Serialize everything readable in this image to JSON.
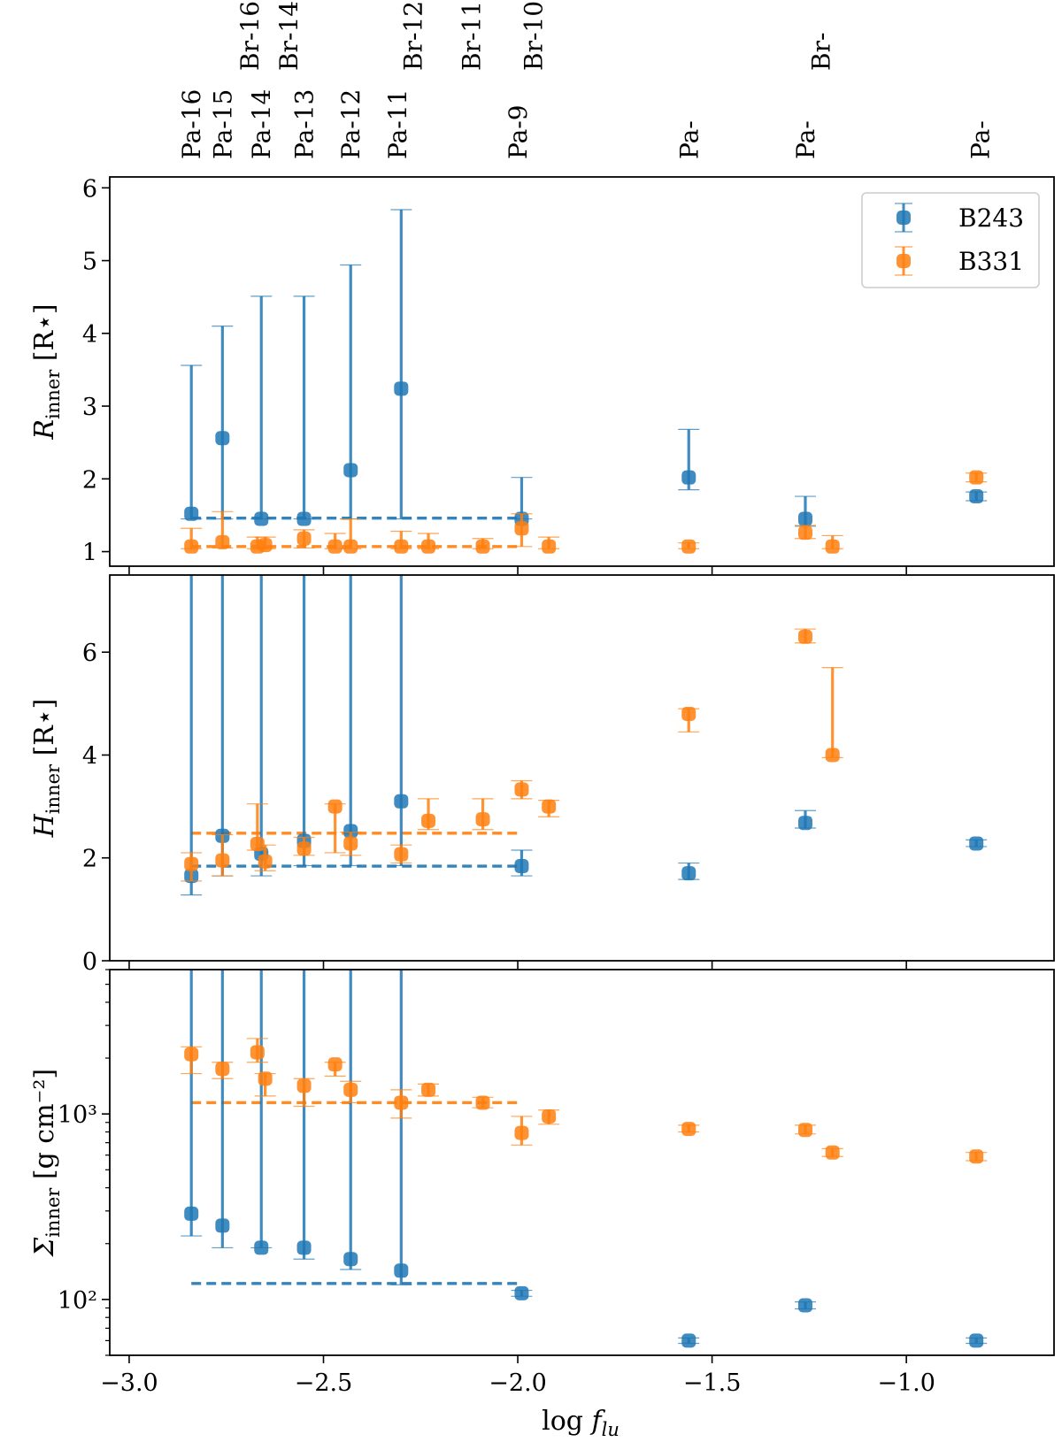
{
  "chart_data": {
    "type": "errorbar-scatter",
    "x": {
      "label_base": "log ",
      "label_var": "f",
      "label_sub": "lu",
      "range": [
        -3.05,
        -0.62
      ],
      "ticks": [
        -3.0,
        -2.5,
        -2.0,
        -1.5,
        -1.0
      ],
      "tick_labels": [
        "−3.0",
        "−2.5",
        "−2.0",
        "−1.5",
        "−1.0"
      ]
    },
    "line_labels": {
      "brackett": [
        {
          "label": "Br-16",
          "x": -2.69
        },
        {
          "label": "Br-14",
          "x": -2.59
        },
        {
          "label": "Br-12",
          "x": -2.27
        },
        {
          "label": "Br-11",
          "x": -2.12
        },
        {
          "label": "Br-10",
          "x": -1.96
        },
        {
          "label": "Br-",
          "x": -1.22
        }
      ],
      "paschen": [
        {
          "label": "Pa-16",
          "x": -2.84
        },
        {
          "label": "Pa-15",
          "x": -2.76
        },
        {
          "label": "Pa-14",
          "x": -2.66
        },
        {
          "label": "Pa-13",
          "x": -2.55
        },
        {
          "label": "Pa-12",
          "x": -2.43
        },
        {
          "label": "Pa-11",
          "x": -2.31
        },
        {
          "label": "Pa-9",
          "x": -2.0
        },
        {
          "label": "Pa-",
          "x": -1.56
        },
        {
          "label": "Pa-",
          "x": -1.26
        },
        {
          "label": "Pa-",
          "x": -0.81
        }
      ]
    },
    "legend": {
      "location": "upper right of top panel",
      "entries": [
        {
          "name": "B243",
          "color": "#1f77b4"
        },
        {
          "name": "B331",
          "color": "#ff7f0e"
        }
      ]
    },
    "panels": [
      {
        "id": "r-inner",
        "ylabel_sym": "R",
        "ylabel_sub": "inner",
        "ylabel_unit": "[R⋆]",
        "yscale": "linear",
        "ylim": [
          0.8,
          6.15
        ],
        "yticks": [
          1,
          2,
          3,
          4,
          5,
          6
        ],
        "ytick_labels": [
          "1",
          "2",
          "3",
          "4",
          "5",
          "6"
        ],
        "series": [
          {
            "name": "B243",
            "color": "#1f77b4",
            "points": [
              {
                "x": -2.84,
                "y": 1.52,
                "lo": 1.45,
                "hi": 3.56
              },
              {
                "x": -2.76,
                "y": 2.56,
                "lo": 1.45,
                "hi": 4.1
              },
              {
                "x": -2.66,
                "y": 1.45,
                "lo": 1.45,
                "hi": 4.51
              },
              {
                "x": -2.55,
                "y": 1.45,
                "lo": 1.45,
                "hi": 4.51
              },
              {
                "x": -2.43,
                "y": 2.12,
                "lo": 1.45,
                "hi": 4.94
              },
              {
                "x": -2.3,
                "y": 3.24,
                "lo": 1.45,
                "hi": 5.7
              },
              {
                "x": -1.99,
                "y": 1.45,
                "lo": 1.45,
                "hi": 2.02
              },
              {
                "x": -1.56,
                "y": 2.02,
                "lo": 1.85,
                "hi": 2.68
              },
              {
                "x": -1.26,
                "y": 1.45,
                "lo": 1.35,
                "hi": 1.76
              },
              {
                "x": -0.82,
                "y": 1.76,
                "lo": 1.7,
                "hi": 1.82
              }
            ],
            "mean": {
              "y": 1.46,
              "x0": -2.84,
              "x1": -1.99
            }
          },
          {
            "name": "B331",
            "color": "#ff7f0e",
            "points": [
              {
                "x": -2.84,
                "y": 1.07,
                "lo": 1.04,
                "hi": 1.32
              },
              {
                "x": -2.76,
                "y": 1.13,
                "lo": 1.05,
                "hi": 1.55
              },
              {
                "x": -2.67,
                "y": 1.07,
                "lo": 1.04,
                "hi": 1.2
              },
              {
                "x": -2.65,
                "y": 1.09,
                "lo": 1.04,
                "hi": 1.2
              },
              {
                "x": -2.55,
                "y": 1.18,
                "lo": 1.05,
                "hi": 1.3
              },
              {
                "x": -2.47,
                "y": 1.07,
                "lo": 1.04,
                "hi": 1.25
              },
              {
                "x": -2.43,
                "y": 1.07,
                "lo": 1.04,
                "hi": 1.45
              },
              {
                "x": -2.3,
                "y": 1.07,
                "lo": 1.04,
                "hi": 1.28
              },
              {
                "x": -2.23,
                "y": 1.07,
                "lo": 1.04,
                "hi": 1.25
              },
              {
                "x": -2.09,
                "y": 1.07,
                "lo": 1.04,
                "hi": 1.18
              },
              {
                "x": -1.99,
                "y": 1.32,
                "lo": 1.07,
                "hi": 1.52
              },
              {
                "x": -1.92,
                "y": 1.07,
                "lo": 1.04,
                "hi": 1.2
              },
              {
                "x": -1.56,
                "y": 1.07,
                "lo": 1.04,
                "hi": 1.12
              },
              {
                "x": -1.26,
                "y": 1.26,
                "lo": 1.18,
                "hi": 1.36
              },
              {
                "x": -1.19,
                "y": 1.07,
                "lo": 1.04,
                "hi": 1.22
              },
              {
                "x": -0.82,
                "y": 2.02,
                "lo": 1.96,
                "hi": 2.08
              }
            ],
            "mean": {
              "y": 1.07,
              "x0": -2.84,
              "x1": -1.99
            }
          }
        ]
      },
      {
        "id": "h-inner",
        "ylabel_sym": "H",
        "ylabel_sub": "inner",
        "ylabel_unit": "[R⋆]",
        "yscale": "linear",
        "ylim": [
          0,
          7.5
        ],
        "yticks": [
          0,
          2,
          4,
          6
        ],
        "ytick_labels": [
          "0",
          "2",
          "4",
          "6"
        ],
        "series": [
          {
            "name": "B243",
            "color": "#1f77b4",
            "points": [
              {
                "x": -2.84,
                "y": 1.65,
                "lo": 1.28,
                "hi": 7.5
              },
              {
                "x": -2.76,
                "y": 2.43,
                "lo": 1.65,
                "hi": 7.5
              },
              {
                "x": -2.66,
                "y": 2.08,
                "lo": 1.65,
                "hi": 7.5
              },
              {
                "x": -2.55,
                "y": 2.33,
                "lo": 1.85,
                "hi": 7.5
              },
              {
                "x": -2.43,
                "y": 2.52,
                "lo": 1.85,
                "hi": 7.5
              },
              {
                "x": -2.3,
                "y": 3.1,
                "lo": 1.85,
                "hi": 7.5
              },
              {
                "x": -1.99,
                "y": 1.84,
                "lo": 1.65,
                "hi": 2.15
              },
              {
                "x": -1.56,
                "y": 1.7,
                "lo": 1.58,
                "hi": 1.9
              },
              {
                "x": -1.26,
                "y": 2.68,
                "lo": 2.58,
                "hi": 2.92
              },
              {
                "x": -0.82,
                "y": 2.28,
                "lo": 2.22,
                "hi": 2.35
              }
            ],
            "mean": {
              "y": 1.84,
              "x0": -2.84,
              "x1": -1.99
            }
          },
          {
            "name": "B331",
            "color": "#ff7f0e",
            "points": [
              {
                "x": -2.84,
                "y": 1.88,
                "lo": 1.55,
                "hi": 2.1
              },
              {
                "x": -2.76,
                "y": 1.95,
                "lo": 1.65,
                "hi": 2.45
              },
              {
                "x": -2.67,
                "y": 2.27,
                "lo": 2.15,
                "hi": 3.05
              },
              {
                "x": -2.65,
                "y": 1.93,
                "lo": 1.75,
                "hi": 2.25
              },
              {
                "x": -2.55,
                "y": 2.18,
                "lo": 2.05,
                "hi": 2.4
              },
              {
                "x": -2.47,
                "y": 3.0,
                "lo": 2.1,
                "hi": 3.05
              },
              {
                "x": -2.43,
                "y": 2.28,
                "lo": 2.05,
                "hi": 2.5
              },
              {
                "x": -2.3,
                "y": 2.07,
                "lo": 1.9,
                "hi": 2.25
              },
              {
                "x": -2.23,
                "y": 2.72,
                "lo": 2.55,
                "hi": 3.15
              },
              {
                "x": -2.09,
                "y": 2.75,
                "lo": 2.55,
                "hi": 3.15
              },
              {
                "x": -1.99,
                "y": 3.33,
                "lo": 3.15,
                "hi": 3.5
              },
              {
                "x": -1.92,
                "y": 3.0,
                "lo": 2.8,
                "hi": 3.12
              },
              {
                "x": -1.56,
                "y": 4.8,
                "lo": 4.45,
                "hi": 4.9
              },
              {
                "x": -1.26,
                "y": 6.3,
                "lo": 6.18,
                "hi": 6.45
              },
              {
                "x": -1.19,
                "y": 4.0,
                "lo": 3.95,
                "hi": 5.7
              }
            ],
            "mean": {
              "y": 2.48,
              "x0": -2.84,
              "x1": -1.99
            }
          }
        ]
      },
      {
        "id": "sigma-inner",
        "ylabel_sym": "Σ",
        "ylabel_sub": "inner",
        "ylabel_unit": "[g cm⁻²]",
        "yscale": "log",
        "ylim": [
          50,
          6000
        ],
        "yticks": [
          100,
          1000
        ],
        "ytick_labels": [
          "10²",
          "10³"
        ],
        "series": [
          {
            "name": "B243",
            "color": "#1f77b4",
            "points": [
              {
                "x": -2.84,
                "y": 290,
                "lo": 220,
                "hi": 6000
              },
              {
                "x": -2.76,
                "y": 250,
                "lo": 190,
                "hi": 6000
              },
              {
                "x": -2.66,
                "y": 190,
                "lo": 190,
                "hi": 6000
              },
              {
                "x": -2.55,
                "y": 190,
                "lo": 165,
                "hi": 6000
              },
              {
                "x": -2.43,
                "y": 165,
                "lo": 145,
                "hi": 6000
              },
              {
                "x": -2.3,
                "y": 143,
                "lo": 120,
                "hi": 6000
              },
              {
                "x": -1.99,
                "y": 108,
                "lo": 104,
                "hi": 112
              },
              {
                "x": -1.56,
                "y": 60,
                "lo": 58,
                "hi": 62
              },
              {
                "x": -1.26,
                "y": 93,
                "lo": 89,
                "hi": 97
              },
              {
                "x": -0.82,
                "y": 60,
                "lo": 58,
                "hi": 62
              }
            ],
            "mean": {
              "y": 122,
              "x0": -2.84,
              "x1": -1.99
            }
          },
          {
            "name": "B331",
            "color": "#ff7f0e",
            "points": [
              {
                "x": -2.84,
                "y": 2100,
                "lo": 1650,
                "hi": 2300
              },
              {
                "x": -2.76,
                "y": 1750,
                "lo": 1550,
                "hi": 1900
              },
              {
                "x": -2.67,
                "y": 2150,
                "lo": 1900,
                "hi": 2550
              },
              {
                "x": -2.65,
                "y": 1550,
                "lo": 1250,
                "hi": 1650
              },
              {
                "x": -2.55,
                "y": 1420,
                "lo": 1100,
                "hi": 1550
              },
              {
                "x": -2.47,
                "y": 1850,
                "lo": 1600,
                "hi": 1900
              },
              {
                "x": -2.43,
                "y": 1350,
                "lo": 1150,
                "hi": 1500
              },
              {
                "x": -2.3,
                "y": 1150,
                "lo": 950,
                "hi": 1350
              },
              {
                "x": -2.23,
                "y": 1350,
                "lo": 1250,
                "hi": 1450
              },
              {
                "x": -2.09,
                "y": 1150,
                "lo": 1080,
                "hi": 1230
              },
              {
                "x": -1.99,
                "y": 790,
                "lo": 680,
                "hi": 970
              },
              {
                "x": -1.92,
                "y": 970,
                "lo": 880,
                "hi": 1050
              },
              {
                "x": -1.56,
                "y": 830,
                "lo": 800,
                "hi": 870
              },
              {
                "x": -1.26,
                "y": 820,
                "lo": 780,
                "hi": 870
              },
              {
                "x": -1.19,
                "y": 620,
                "lo": 590,
                "hi": 650
              },
              {
                "x": -0.82,
                "y": 590,
                "lo": 560,
                "hi": 620
              }
            ],
            "mean": {
              "y": 1150,
              "x0": -2.84,
              "x1": -1.99
            }
          }
        ]
      }
    ]
  }
}
